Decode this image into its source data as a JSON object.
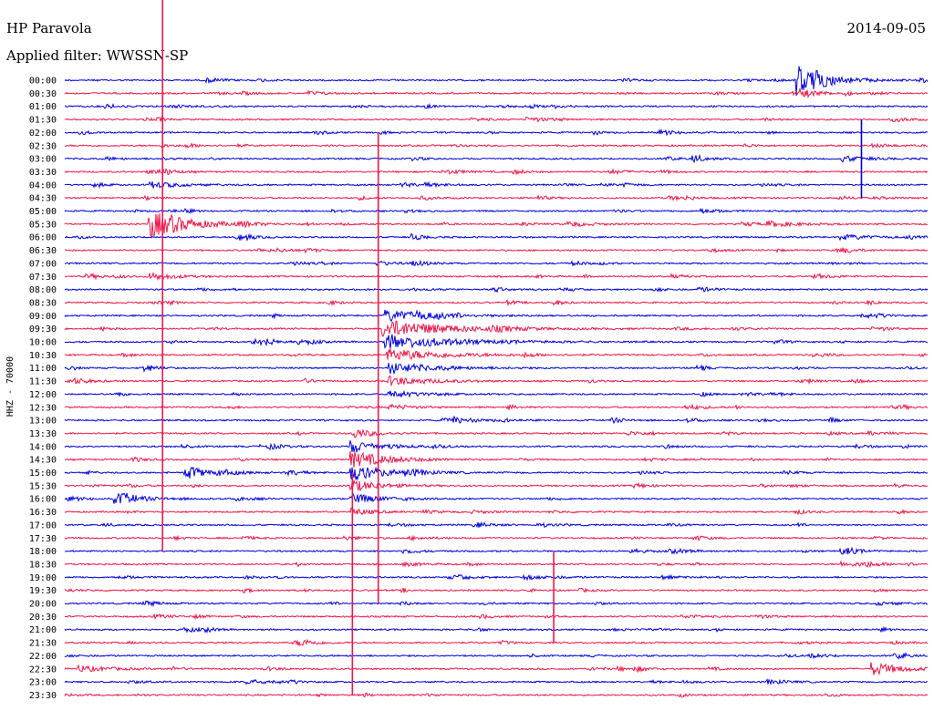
{
  "header": {
    "station": "HP Paravola",
    "date": "2014-09-05",
    "filter_label": "Applied filter: WWSSN-SP",
    "channel_label": "HHZ - 70000"
  },
  "colors": {
    "even_trace": "#0000e0",
    "odd_trace": "#f0184a",
    "background": "#ffffff"
  },
  "chart_data": {
    "type": "line",
    "title": "HP Paravola",
    "subtitle": "Applied filter: WWSSN-SP",
    "ylabel": "HHZ - 70000",
    "date": "2014-09-05",
    "time_labels": [
      "00:00",
      "00:30",
      "01:00",
      "01:30",
      "02:00",
      "02:30",
      "03:00",
      "03:30",
      "04:00",
      "04:30",
      "05:00",
      "05:30",
      "06:00",
      "06:30",
      "07:00",
      "07:30",
      "08:00",
      "08:30",
      "09:00",
      "09:30",
      "10:00",
      "10:30",
      "11:00",
      "11:30",
      "12:00",
      "12:30",
      "13:00",
      "13:30",
      "14:00",
      "14:30",
      "15:00",
      "15:30",
      "16:00",
      "16:30",
      "17:00",
      "17:30",
      "18:00",
      "18:30",
      "19:00",
      "19:30",
      "20:00",
      "20:30",
      "21:00",
      "21:30",
      "22:00",
      "22:30",
      "23:00",
      "23:30"
    ],
    "trace_minutes": 30,
    "trace_colors_alternate": [
      "blue",
      "red"
    ],
    "events": [
      {
        "trace": 0,
        "minute": 25.5,
        "amp": 6.0,
        "len": 1.5
      },
      {
        "trace": 1,
        "minute": 8.5,
        "amp": 0.8,
        "len": 0.8
      },
      {
        "trace": 1,
        "minute": 25.6,
        "amp": 1.4,
        "len": 1.2
      },
      {
        "trace": 6,
        "minute": 27.0,
        "amp": 1.0,
        "len": 1.5
      },
      {
        "trace": 8,
        "minute": 3.0,
        "amp": 1.2,
        "len": 1.5
      },
      {
        "trace": 9,
        "minute": 21.0,
        "amp": 0.7,
        "len": 1.0
      },
      {
        "trace": 11,
        "minute": 3.0,
        "amp": 5.0,
        "len": 2.0
      },
      {
        "trace": 11,
        "minute": 17.5,
        "amp": 0.9,
        "len": 1.2
      },
      {
        "trace": 11,
        "minute": 24.5,
        "amp": 0.9,
        "len": 1.8
      },
      {
        "trace": 12,
        "minute": 27.0,
        "amp": 0.9,
        "len": 1.8
      },
      {
        "trace": 15,
        "minute": 3.0,
        "amp": 1.4,
        "len": 1.2
      },
      {
        "trace": 18,
        "minute": 11.2,
        "amp": 2.0,
        "len": 2.5
      },
      {
        "trace": 19,
        "minute": 11.2,
        "amp": 3.2,
        "len": 3.5
      },
      {
        "trace": 20,
        "minute": 11.3,
        "amp": 2.6,
        "len": 3.5
      },
      {
        "trace": 20,
        "minute": 6.5,
        "amp": 0.9,
        "len": 1.3
      },
      {
        "trace": 21,
        "minute": 11.3,
        "amp": 2.2,
        "len": 3.0
      },
      {
        "trace": 22,
        "minute": 11.3,
        "amp": 2.0,
        "len": 2.5
      },
      {
        "trace": 23,
        "minute": 11.3,
        "amp": 1.8,
        "len": 2.0
      },
      {
        "trace": 24,
        "minute": 11.3,
        "amp": 1.4,
        "len": 1.6
      },
      {
        "trace": 25,
        "minute": 11.3,
        "amp": 1.0,
        "len": 1.2
      },
      {
        "trace": 26,
        "minute": 13.5,
        "amp": 0.9,
        "len": 1.5
      },
      {
        "trace": 27,
        "minute": 10.0,
        "amp": 2.0,
        "len": 1.0
      },
      {
        "trace": 28,
        "minute": 10.0,
        "amp": 2.4,
        "len": 1.5
      },
      {
        "trace": 29,
        "minute": 10.0,
        "amp": 3.0,
        "len": 2.0
      },
      {
        "trace": 30,
        "minute": 10.0,
        "amp": 2.8,
        "len": 2.0
      },
      {
        "trace": 30,
        "minute": 4.2,
        "amp": 1.5,
        "len": 1.5
      },
      {
        "trace": 31,
        "minute": 10.0,
        "amp": 2.2,
        "len": 1.5
      },
      {
        "trace": 32,
        "minute": 10.0,
        "amp": 1.8,
        "len": 1.5
      },
      {
        "trace": 32,
        "minute": 1.8,
        "amp": 1.3,
        "len": 1.8
      },
      {
        "trace": 33,
        "minute": 10.0,
        "amp": 1.4,
        "len": 1.0
      },
      {
        "trace": 37,
        "minute": 27.0,
        "amp": 0.9,
        "len": 1.2
      },
      {
        "trace": 38,
        "minute": 16.0,
        "amp": 0.8,
        "len": 1.5
      },
      {
        "trace": 45,
        "minute": 0.5,
        "amp": 1.2,
        "len": 1.5
      },
      {
        "trace": 45,
        "minute": 28.1,
        "amp": 2.4,
        "len": 1.5
      }
    ],
    "spikes": [
      {
        "minute": 3.4,
        "from_trace": 0,
        "to_trace": 36
      },
      {
        "minute": 10.9,
        "from_trace": 4,
        "to_trace": 40
      },
      {
        "minute": 10.0,
        "from_trace": 30,
        "to_trace": 47
      },
      {
        "minute": 27.7,
        "from_trace": 3,
        "to_trace": 9
      },
      {
        "minute": 17.0,
        "from_trace": 36,
        "to_trace": 43
      }
    ],
    "grid": false,
    "legend": "none"
  }
}
